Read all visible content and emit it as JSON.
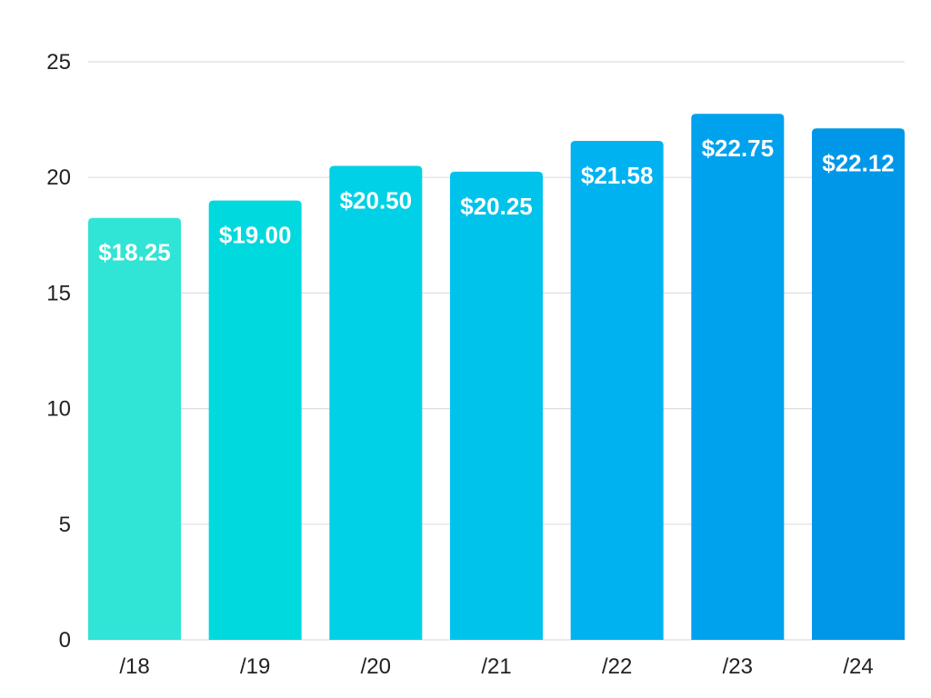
{
  "chart_data": {
    "type": "bar",
    "title": "",
    "xlabel": "",
    "ylabel": "",
    "categories": [
      "/18",
      "/19",
      "/20",
      "/21",
      "/22",
      "/23",
      "/24"
    ],
    "values": [
      18.25,
      19.0,
      20.5,
      20.25,
      21.58,
      22.75,
      22.12
    ],
    "value_labels": [
      "$18.25",
      "$19.00",
      "$20.50",
      "$20.25",
      "$21.58",
      "$22.75",
      "$22.12"
    ],
    "y_ticks": [
      "0",
      "5",
      "10",
      "15",
      "20",
      "25"
    ],
    "ylim": [
      0,
      25
    ],
    "grid": true,
    "legend": "none",
    "colors": [
      "#30e4d6",
      "#00d9de",
      "#00d1e6",
      "#00c3ec",
      "#00b3f0",
      "#00a2ee",
      "#0097e8"
    ]
  }
}
